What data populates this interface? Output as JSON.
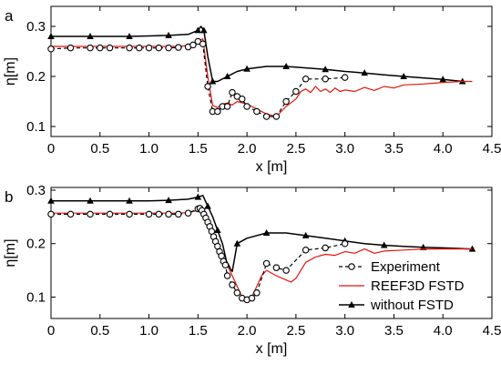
{
  "chart_data": [
    {
      "type": "line",
      "panel_label": "a",
      "xlabel": "x [m]",
      "ylabel": "η[m]",
      "xlim": [
        0,
        4.5
      ],
      "ylim": [
        0.08,
        0.34
      ],
      "x_ticks": [
        0,
        0.5,
        1.0,
        1.5,
        2.0,
        2.5,
        3.0,
        3.5,
        4.0,
        4.5
      ],
      "x_tick_labels": [
        "0",
        "0.5",
        "1.0",
        "1.5",
        "2.0",
        "2.5",
        "3.0",
        "3.5",
        "4.0",
        "4.5"
      ],
      "y_ticks": [
        0.1,
        0.2,
        0.3
      ],
      "y_tick_labels": [
        "0.1",
        "0.2",
        "0.3"
      ],
      "grid": false,
      "legend": null,
      "series": [
        {
          "key": "experiment",
          "color": "#000000",
          "style": "dashed-open-circles",
          "x": [
            0,
            0.2,
            0.4,
            0.5,
            0.6,
            0.8,
            0.9,
            1.0,
            1.1,
            1.2,
            1.3,
            1.4,
            1.45,
            1.5,
            1.55,
            1.6,
            1.65,
            1.7,
            1.75,
            1.8,
            1.85,
            1.9,
            1.95,
            2.0,
            2.1,
            2.2,
            2.3,
            2.4,
            2.5,
            2.6,
            2.8,
            3.0
          ],
          "y": [
            0.255,
            0.257,
            0.257,
            0.257,
            0.257,
            0.257,
            0.257,
            0.257,
            0.257,
            0.257,
            0.258,
            0.259,
            0.263,
            0.27,
            0.265,
            0.18,
            0.13,
            0.13,
            0.14,
            0.14,
            0.168,
            0.16,
            0.155,
            0.14,
            0.13,
            0.12,
            0.12,
            0.15,
            0.17,
            0.195,
            0.195,
            0.198
          ]
        },
        {
          "key": "reef3d",
          "color": "#e8130c",
          "style": "solid",
          "x": [
            0,
            1.3,
            1.45,
            1.5,
            1.55,
            1.6,
            1.65,
            1.7,
            1.75,
            1.8,
            1.85,
            1.9,
            2.0,
            2.1,
            2.2,
            2.3,
            2.4,
            2.5,
            2.55,
            2.6,
            2.65,
            2.7,
            2.75,
            2.8,
            2.85,
            2.9,
            2.95,
            3.0,
            3.1,
            3.2,
            3.3,
            3.4,
            3.5,
            3.6,
            3.8,
            4.0,
            4.2,
            4.3
          ],
          "y": [
            0.26,
            0.26,
            0.263,
            0.272,
            0.275,
            0.2,
            0.142,
            0.138,
            0.145,
            0.147,
            0.143,
            0.15,
            0.145,
            0.135,
            0.125,
            0.12,
            0.14,
            0.155,
            0.17,
            0.175,
            0.168,
            0.18,
            0.17,
            0.175,
            0.168,
            0.177,
            0.17,
            0.173,
            0.17,
            0.178,
            0.172,
            0.18,
            0.177,
            0.183,
            0.185,
            0.188,
            0.19,
            0.19
          ]
        },
        {
          "key": "without_fstd",
          "color": "#000000",
          "style": "solid-filled-triangles",
          "x": [
            0,
            0.2,
            0.4,
            0.6,
            0.8,
            1.0,
            1.2,
            1.4,
            1.5,
            1.53,
            1.56,
            1.6,
            1.65,
            1.7,
            1.8,
            1.9,
            2.0,
            2.2,
            2.4,
            2.6,
            2.8,
            3.0,
            3.2,
            3.4,
            3.6,
            3.8,
            4.0,
            4.2
          ],
          "y": [
            0.28,
            0.28,
            0.28,
            0.28,
            0.28,
            0.281,
            0.282,
            0.284,
            0.292,
            0.3,
            0.292,
            0.24,
            0.19,
            0.19,
            0.2,
            0.21,
            0.215,
            0.22,
            0.22,
            0.217,
            0.214,
            0.21,
            0.207,
            0.203,
            0.2,
            0.197,
            0.194,
            0.19
          ]
        }
      ]
    },
    {
      "type": "line",
      "panel_label": "b",
      "xlabel": "x [m]",
      "ylabel": "η[m]",
      "xlim": [
        0,
        4.5
      ],
      "ylim": [
        0.06,
        0.305
      ],
      "x_ticks": [
        0,
        0.5,
        1.0,
        1.5,
        2.0,
        2.5,
        3.0,
        3.5,
        4.0,
        4.5
      ],
      "x_tick_labels": [
        "0",
        "0.5",
        "1.0",
        "1.5",
        "2.0",
        "2.5",
        "3.0",
        "3.5",
        "4.0",
        "4.5"
      ],
      "y_ticks": [
        0.1,
        0.2,
        0.3
      ],
      "y_tick_labels": [
        "0.1",
        "0.2",
        "0.3"
      ],
      "grid": false,
      "legend": {
        "placement": "bottom-right",
        "entries": [
          {
            "series": "experiment",
            "label": "Experiment"
          },
          {
            "series": "reef3d",
            "label": "REEF3D FSTD"
          },
          {
            "series": "without_fstd",
            "label": "without FSTD"
          }
        ]
      },
      "series": [
        {
          "key": "experiment",
          "color": "#000000",
          "style": "dashed-open-circles",
          "x": [
            0,
            0.2,
            0.4,
            0.6,
            0.8,
            1.0,
            1.1,
            1.2,
            1.3,
            1.4,
            1.5,
            1.52,
            1.54,
            1.56,
            1.58,
            1.6,
            1.62,
            1.64,
            1.66,
            1.68,
            1.7,
            1.72,
            1.74,
            1.76,
            1.78,
            1.8,
            1.85,
            1.9,
            1.95,
            2.0,
            2.05,
            2.1,
            2.2,
            2.3,
            2.4,
            2.6,
            2.8,
            3.0
          ],
          "y": [
            0.255,
            0.255,
            0.255,
            0.255,
            0.255,
            0.255,
            0.255,
            0.255,
            0.255,
            0.257,
            0.265,
            0.266,
            0.262,
            0.255,
            0.248,
            0.24,
            0.232,
            0.223,
            0.213,
            0.204,
            0.195,
            0.185,
            0.177,
            0.167,
            0.16,
            0.14,
            0.123,
            0.108,
            0.098,
            0.095,
            0.098,
            0.108,
            0.163,
            0.155,
            0.15,
            0.188,
            0.192,
            0.2
          ]
        },
        {
          "key": "reef3d",
          "color": "#e8130c",
          "style": "solid",
          "x": [
            0,
            1.3,
            1.4,
            1.5,
            1.55,
            1.6,
            1.65,
            1.7,
            1.75,
            1.8,
            1.85,
            1.9,
            1.95,
            2.0,
            2.05,
            2.1,
            2.15,
            2.2,
            2.3,
            2.4,
            2.45,
            2.5,
            2.6,
            2.7,
            2.8,
            2.9,
            3.0,
            3.1,
            3.2,
            3.3,
            3.4,
            3.6,
            3.8,
            4.0,
            4.2,
            4.3
          ],
          "y": [
            0.257,
            0.257,
            0.258,
            0.262,
            0.262,
            0.24,
            0.215,
            0.195,
            0.175,
            0.16,
            0.14,
            0.12,
            0.1,
            0.092,
            0.1,
            0.12,
            0.14,
            0.15,
            0.14,
            0.132,
            0.128,
            0.135,
            0.165,
            0.175,
            0.18,
            0.178,
            0.185,
            0.182,
            0.19,
            0.182,
            0.186,
            0.188,
            0.19,
            0.19,
            0.19,
            0.19
          ]
        },
        {
          "key": "without_fstd",
          "color": "#000000",
          "style": "solid-filled-triangles",
          "x": [
            0,
            0.2,
            0.4,
            0.6,
            0.8,
            1.0,
            1.2,
            1.4,
            1.5,
            1.55,
            1.6,
            1.65,
            1.7,
            1.75,
            1.8,
            1.85,
            1.9,
            2.0,
            2.2,
            2.4,
            2.6,
            2.8,
            3.0,
            3.2,
            3.4,
            3.6,
            3.8,
            4.0,
            4.3
          ],
          "y": [
            0.28,
            0.28,
            0.28,
            0.28,
            0.28,
            0.28,
            0.281,
            0.283,
            0.287,
            0.29,
            0.27,
            0.25,
            0.225,
            0.2,
            0.16,
            0.148,
            0.2,
            0.21,
            0.22,
            0.22,
            0.215,
            0.21,
            0.205,
            0.2,
            0.197,
            0.195,
            0.193,
            0.192,
            0.19
          ]
        }
      ]
    }
  ]
}
